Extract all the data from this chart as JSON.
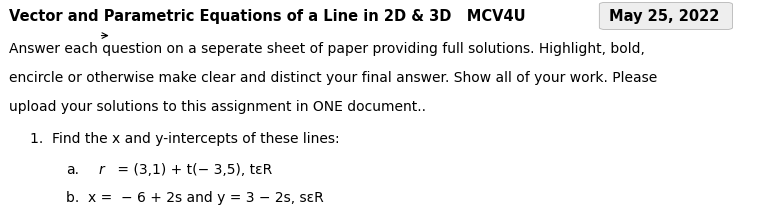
{
  "title_left": "Vector and Parametric Equations of a Line in 2D & 3D   MCV4U",
  "title_right": "May 25, 2022",
  "body_line1": "Answer each question on a seperate sheet of paper providing full solutions. Highlight, bold,",
  "body_line2": "encircle or otherwise make clear and distinct your final answer. Show all of your work. Please",
  "body_line3": "upload your solutions to this assignment in ONE document..",
  "question_num": "1.",
  "question_text": "Find the x and y-intercepts of these lines:",
  "part_a_label": "a.",
  "part_b_label": "b.",
  "part_a_eq": " = (3,1) + t(− 3,5), tεR",
  "part_b_eq": "x =  − 6 + 2s and y = 3 − 2s, sεR",
  "bg_color": "#ffffff",
  "text_color": "#000000",
  "title_box_color": "#e0e0e0",
  "font_size_title": 10.5,
  "font_size_body": 10,
  "font_size_eq": 10
}
